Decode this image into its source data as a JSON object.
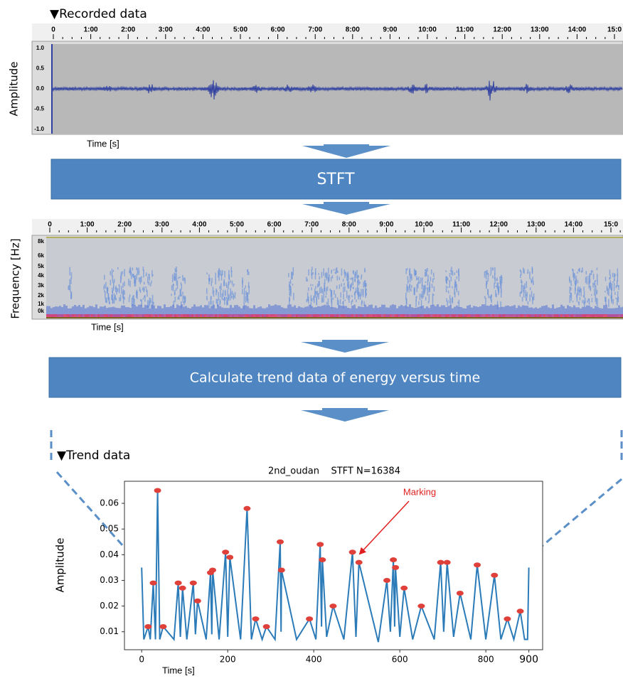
{
  "recorded": {
    "title": "▼Recorded data",
    "ylabel": "Amplitude",
    "xlabel": "Time [s]",
    "time_labels": [
      "0",
      "1:00",
      "2:00",
      "3:00",
      "4:00",
      "5:00",
      "6:00",
      "7:00",
      "8:00",
      "9:00",
      "10:00",
      "11:00",
      "12:00",
      "13:00",
      "14:00",
      "15:0"
    ],
    "amplitude_labels": [
      "1.0",
      "0.5",
      "0.0",
      "-0.5",
      "-1.0"
    ]
  },
  "steps": [
    "STFT",
    "Calculate trend data of energy versus time"
  ],
  "spectrogram": {
    "ylabel": "Frequency [Hz]",
    "xlabel": "Time [s]",
    "time_labels": [
      "0",
      "1:00",
      "2:00",
      "3:00",
      "4:00",
      "5:00",
      "6:00",
      "7:00",
      "8:00",
      "9:00",
      "10:00",
      "11:00",
      "12:00",
      "13:00",
      "14:00",
      "15:0"
    ],
    "frequency_labels": [
      "8k",
      "6k",
      "5k",
      "4k",
      "3k",
      "2k",
      "1k",
      "0k"
    ]
  },
  "trend": {
    "heading": "▼Trend data"
  },
  "chart_data": {
    "type": "line",
    "title": "2nd_oudan    STFT N=16384",
    "xlabel": "Time [s]",
    "ylabel": "Amplitude",
    "annotation": "Marking",
    "color": "#2b7bb9",
    "x": [
      0,
      5,
      15,
      20,
      27,
      32,
      37,
      42,
      50,
      75,
      85,
      90,
      95,
      105,
      120,
      125,
      130,
      150,
      160,
      163,
      165,
      180,
      195,
      200,
      205,
      230,
      245,
      255,
      265,
      280,
      290,
      310,
      322,
      324,
      325,
      360,
      390,
      405,
      415,
      418,
      420,
      430,
      445,
      470,
      490,
      498,
      505,
      550,
      570,
      578,
      585,
      588,
      590,
      600,
      610,
      630,
      650,
      680,
      695,
      702,
      710,
      725,
      740,
      765,
      780,
      800,
      820,
      835,
      850,
      865,
      880,
      890,
      893,
      897,
      900
    ],
    "values": [
      0.035,
      0.007,
      0.012,
      0.007,
      0.029,
      0.007,
      0.065,
      0.007,
      0.012,
      0.007,
      0.029,
      0.008,
      0.027,
      0.007,
      0.029,
      0.009,
      0.022,
      0.007,
      0.033,
      0.009,
      0.034,
      0.007,
      0.041,
      0.008,
      0.039,
      0.007,
      0.058,
      0.007,
      0.015,
      0.007,
      0.012,
      0.007,
      0.045,
      0.01,
      0.034,
      0.007,
      0.015,
      0.007,
      0.044,
      0.012,
      0.038,
      0.008,
      0.02,
      0.007,
      0.041,
      0.008,
      0.037,
      0.006,
      0.03,
      0.01,
      0.038,
      0.012,
      0.035,
      0.008,
      0.027,
      0.007,
      0.02,
      0.007,
      0.037,
      0.01,
      0.037,
      0.008,
      0.025,
      0.007,
      0.036,
      0.007,
      0.032,
      0.007,
      0.015,
      0.007,
      0.018,
      0.007,
      0.007,
      0.007,
      0.035
    ],
    "markers": {
      "color": "#e0403a",
      "x": [
        15,
        27,
        37,
        50,
        85,
        95,
        120,
        130,
        160,
        165,
        195,
        205,
        245,
        265,
        290,
        322,
        325,
        390,
        415,
        420,
        445,
        490,
        505,
        570,
        585,
        590,
        610,
        650,
        695,
        710,
        740,
        780,
        820,
        850,
        880
      ],
      "values": [
        0.012,
        0.029,
        0.065,
        0.012,
        0.029,
        0.027,
        0.029,
        0.022,
        0.033,
        0.034,
        0.041,
        0.039,
        0.058,
        0.015,
        0.012,
        0.045,
        0.034,
        0.015,
        0.044,
        0.038,
        0.02,
        0.041,
        0.037,
        0.03,
        0.038,
        0.035,
        0.027,
        0.02,
        0.037,
        0.037,
        0.025,
        0.036,
        0.032,
        0.015,
        0.018
      ]
    },
    "xlim": [
      -40,
      932
    ],
    "ylim": [
      0.003,
      0.0686
    ],
    "xticks": [
      0,
      200,
      400,
      600,
      800,
      {
        "value": 900,
        "label": "900"
      }
    ],
    "yticks": [
      0.01,
      0.02,
      0.03,
      0.04,
      0.05,
      0.06
    ]
  }
}
